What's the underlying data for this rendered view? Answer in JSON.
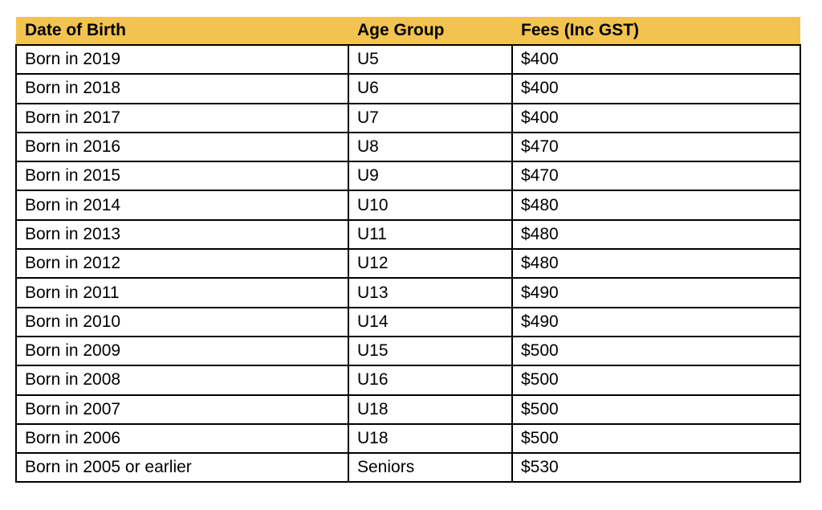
{
  "table": {
    "title": "fees-by-age-group",
    "columns": [
      {
        "key": "dob",
        "label": "Date of Birth"
      },
      {
        "key": "age_group",
        "label": "Age Group"
      },
      {
        "key": "fees",
        "label": "Fees (Inc GST)"
      }
    ],
    "rows": [
      {
        "dob": "Born in 2019",
        "age_group": "U5",
        "fees": "$400"
      },
      {
        "dob": "Born in 2018",
        "age_group": "U6",
        "fees": "$400"
      },
      {
        "dob": "Born in 2017",
        "age_group": "U7",
        "fees": "$400"
      },
      {
        "dob": "Born in 2016",
        "age_group": "U8",
        "fees": "$470"
      },
      {
        "dob": "Born in 2015",
        "age_group": "U9",
        "fees": "$470"
      },
      {
        "dob": "Born in 2014",
        "age_group": "U10",
        "fees": "$480"
      },
      {
        "dob": "Born in 2013",
        "age_group": "U11",
        "fees": "$480"
      },
      {
        "dob": "Born in 2012",
        "age_group": "U12",
        "fees": "$480"
      },
      {
        "dob": "Born in 2011",
        "age_group": "U13",
        "fees": "$490"
      },
      {
        "dob": "Born in 2010",
        "age_group": "U14",
        "fees": "$490"
      },
      {
        "dob": "Born in 2009",
        "age_group": "U15",
        "fees": "$500"
      },
      {
        "dob": "Born in 2008",
        "age_group": "U16",
        "fees": "$500"
      },
      {
        "dob": "Born in 2007",
        "age_group": "U18",
        "fees": "$500"
      },
      {
        "dob": "Born in 2006",
        "age_group": "U18",
        "fees": "$500"
      },
      {
        "dob": "Born in 2005 or earlier",
        "age_group": "Seniors",
        "fees": "$530"
      }
    ]
  },
  "colors": {
    "header_background": "#F2C350",
    "border": "#000000",
    "text": "#000000",
    "page_background": "#FFFFFF"
  }
}
